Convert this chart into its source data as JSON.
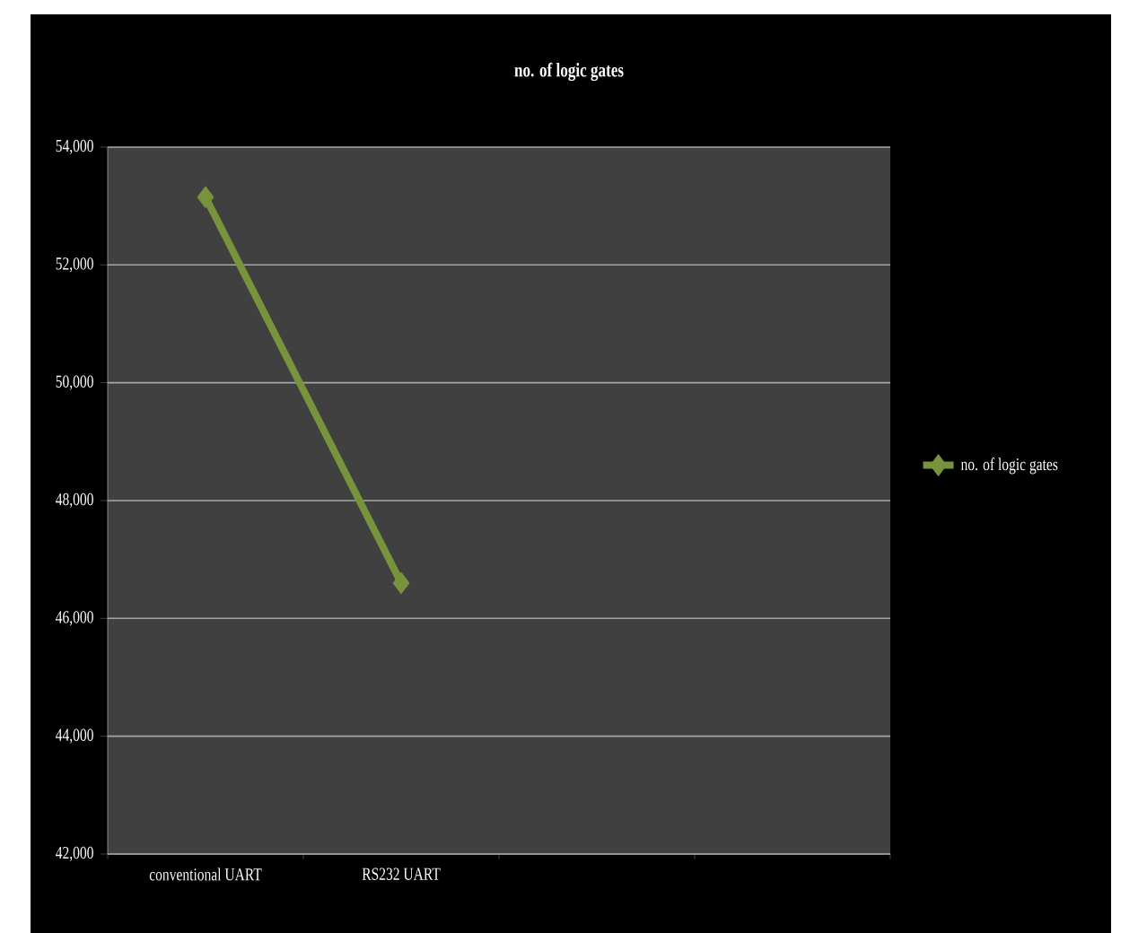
{
  "chart_data": {
    "type": "line",
    "title": "no. of logic gates",
    "categories": [
      "conventional UART",
      "RS232 UART",
      null,
      null
    ],
    "series": [
      {
        "name": "no. of logic gates",
        "color": "#77933c",
        "values": [
          53150,
          46600,
          null,
          null
        ]
      }
    ],
    "ylim": [
      42000,
      54000
    ],
    "yticks": [
      {
        "value": 42000,
        "label": "42,000"
      },
      {
        "value": 44000,
        "label": "44,000"
      },
      {
        "value": 46000,
        "label": "46,000"
      },
      {
        "value": 48000,
        "label": "48,000"
      },
      {
        "value": 50000,
        "label": "50,000"
      },
      {
        "value": 52000,
        "label": "52,000"
      },
      {
        "value": 54000,
        "label": "54,000"
      }
    ],
    "grid": "y",
    "legend": "right",
    "marker": "diamond",
    "line_style": "solid"
  }
}
